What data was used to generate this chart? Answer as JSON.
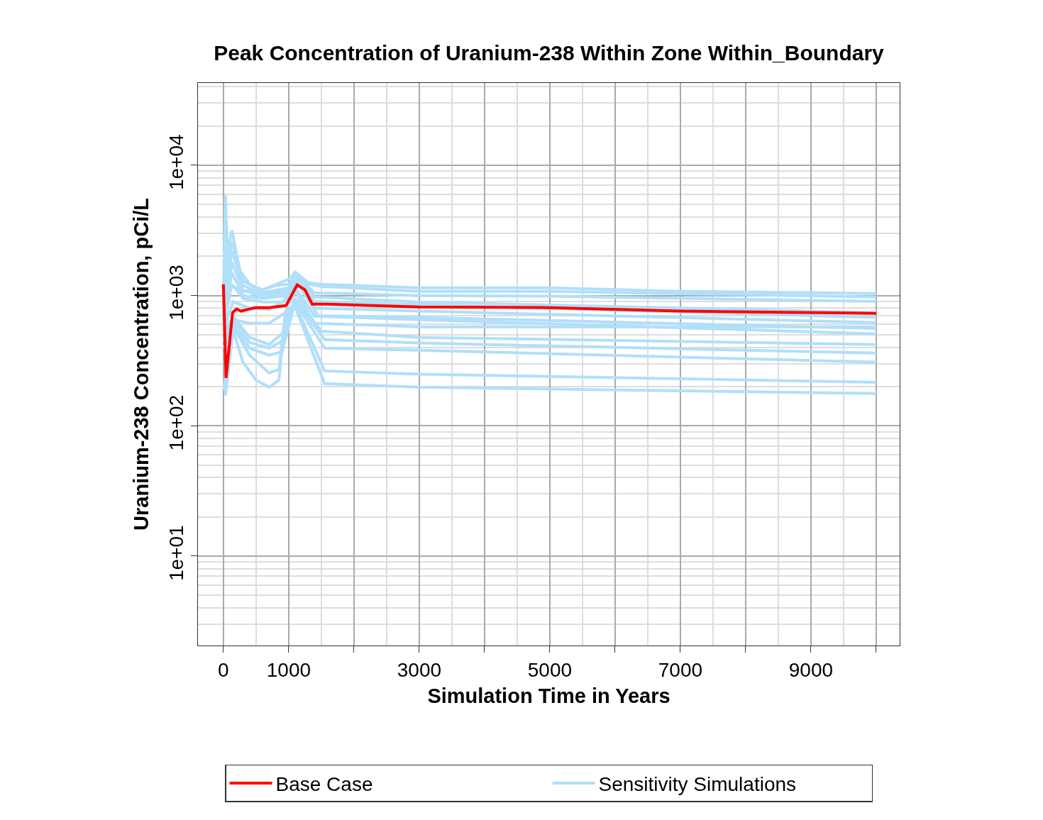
{
  "chart_data": {
    "type": "line",
    "title": "Peak Concentration of Uranium-238 Within Zone Within_Boundary",
    "xlabel": "Simulation Time in Years",
    "ylabel": "Uranium-238 Concentration, pCi/L",
    "log": "y",
    "grid": true,
    "legend": "bottom",
    "marker": "none",
    "line_style": "solid",
    "xlim": [
      -390,
      10360
    ],
    "xticks": [
      0,
      1000,
      {
        "value": 2000,
        "label": null
      },
      3000,
      {
        "value": 4000,
        "label": null
      },
      5000,
      {
        "value": 6000,
        "label": null
      },
      7000,
      {
        "value": 8000,
        "label": null
      },
      9000,
      {
        "value": 10000,
        "label": null
      }
    ],
    "ylim": [
      2.06,
      42800
    ],
    "yticks": [
      {
        "value": 10,
        "label": "1e+01"
      },
      {
        "value": 100,
        "label": "1e+02"
      },
      {
        "value": 1000,
        "label": "1e+03"
      },
      {
        "value": 10000,
        "label": "1e+04"
      }
    ],
    "series": [
      {
        "name": "Base Case",
        "color": "#ff0000",
        "x": [
          0,
          40,
          140,
          200,
          270,
          490,
          700,
          960,
          1130,
          1250,
          1360,
          1580,
          3000,
          5000,
          7000,
          10000
        ],
        "values": [
          1220,
          233,
          740,
          788,
          760,
          808,
          808,
          839,
          1207,
          1105,
          860,
          860,
          818,
          808,
          760,
          731
        ]
      },
      {
        "name": "Sensitivity Simulations",
        "color": "#b0dffa",
        "x": [
          0,
          30,
          80,
          300,
          600,
          1000,
          1100,
          1300,
          1500,
          3000,
          5000,
          7000,
          10000
        ],
        "values": [
          1000,
          5870,
          1222,
          1078,
          1105,
          1335,
          1513,
          1254,
          1222,
          1148,
          1148,
          1078,
          1038
        ]
      },
      {
        "color": "#b0dffa",
        "x": [
          0,
          50,
          130,
          250,
          400,
          600,
          800,
          1000,
          1100,
          1300,
          1500,
          3000,
          5000,
          10000
        ],
        "values": [
          839,
          2020,
          3170,
          1571,
          1222,
          1105,
          1192,
          1222,
          1421,
          1222,
          1177,
          1078,
          1078,
          975
        ]
      },
      {
        "color": "#b0dffa",
        "x": [
          0,
          130,
          300,
          600,
          1000,
          1150,
          1400,
          3000,
          10000
        ],
        "values": [
          951,
          2597,
          1302,
          1051,
          1148,
          1386,
          975,
          893,
          740
        ]
      },
      {
        "color": "#b0dffa",
        "x": [
          0,
          130,
          300,
          600,
          1000,
          1150,
          1400,
          3000,
          5000,
          10000
        ],
        "values": [
          700,
          2200,
          1200,
          1000,
          1100,
          1350,
          1050,
          1000,
          990,
          900
        ]
      },
      {
        "color": "#b0dffa",
        "x": [
          0,
          130,
          300,
          600,
          1000,
          1150,
          1400,
          3000,
          10000
        ],
        "values": [
          650,
          1800,
          1100,
          980,
          1050,
          1300,
          900,
          850,
          680
        ]
      },
      {
        "color": "#b0dffa",
        "x": [
          0,
          130,
          300,
          600,
          1000,
          1150,
          1400,
          3000,
          10000
        ],
        "values": [
          600,
          1500,
          1000,
          950,
          1000,
          1250,
          800,
          760,
          620
        ]
      },
      {
        "color": "#b0dffa",
        "x": [
          0,
          150,
          400,
          700,
          1000,
          1150,
          1450,
          3000,
          10000
        ],
        "values": [
          550,
          900,
          800,
          780,
          950,
          1200,
          700,
          680,
          560
        ]
      },
      {
        "color": "#b0dffa",
        "x": [
          0,
          130,
          300,
          600,
          900,
          1100,
          1400,
          3000,
          10000
        ],
        "values": [
          576,
          1222,
          951,
          893,
          893,
          1148,
          695,
          653,
          508
        ]
      },
      {
        "color": "#b0dffa",
        "x": [
          0,
          150,
          400,
          700,
          950,
          1100,
          1400,
          3000,
          10000
        ],
        "values": [
          186,
          653,
          613,
          613,
          740,
          1078,
          613,
          576,
          576
        ]
      },
      {
        "color": "#b0dffa",
        "x": [
          0,
          150,
          400,
          700,
          900,
          1100,
          1500,
          3000,
          10000
        ],
        "values": [
          508,
          695,
          477,
          421,
          508,
          951,
          534,
          477,
          421
        ]
      },
      {
        "color": "#b0dffa",
        "x": [
          0,
          150,
          400,
          700,
          900,
          1100,
          1550,
          3000,
          10000
        ],
        "values": [
          508,
          653,
          437,
          395,
          448,
          928,
          459,
          432,
          362
        ]
      },
      {
        "color": "#b0dffa",
        "x": [
          0,
          150,
          400,
          700,
          900,
          1100,
          1550,
          3000,
          10000
        ],
        "values": [
          448,
          613,
          395,
          349,
          371,
          893,
          395,
          380,
          308
        ]
      },
      {
        "color": "#b0dffa",
        "x": [
          0,
          150,
          400,
          700,
          850,
          950,
          1100,
          1550,
          3000,
          10000
        ],
        "values": [
          395,
          576,
          349,
          255,
          271,
          740,
          860,
          264,
          249,
          216
        ]
      },
      {
        "color": "#b0dffa",
        "x": [
          30,
          150,
          300,
          500,
          700,
          850,
          950,
          1100,
          1550,
          3000,
          10000
        ],
        "values": [
          171,
          541,
          308,
          224,
          198,
          224,
          695,
          818,
          211,
          198,
          177
        ]
      }
    ]
  }
}
